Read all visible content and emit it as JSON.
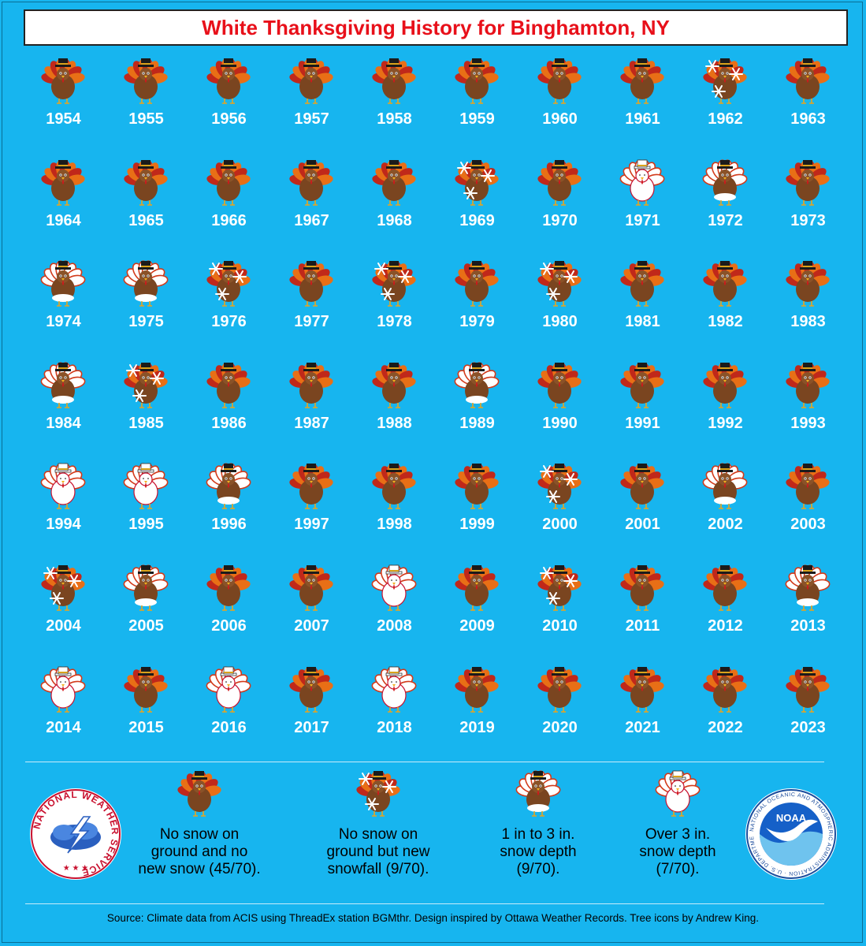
{
  "title": "White Thanksgiving History for Binghamton, NY",
  "colors": {
    "background": "#17b5ef",
    "title_text": "#e8101a",
    "turkey_body": "#7a4520",
    "feather_red": "#c0281a",
    "feather_orange": "#e86f16",
    "snow": "#ffffff"
  },
  "chart_data": {
    "type": "table",
    "categories": {
      "none": "No snow on ground and no new snow (45/70).",
      "new": "No snow on ground but new snowfall (9/70).",
      "light": "1 in to 3 in. snow depth (9/70).",
      "heavy": "Over 3 in. snow depth (7/70)."
    },
    "years": [
      {
        "year": "1954",
        "cat": "none"
      },
      {
        "year": "1955",
        "cat": "none"
      },
      {
        "year": "1956",
        "cat": "none"
      },
      {
        "year": "1957",
        "cat": "none"
      },
      {
        "year": "1958",
        "cat": "none"
      },
      {
        "year": "1959",
        "cat": "none"
      },
      {
        "year": "1960",
        "cat": "none"
      },
      {
        "year": "1961",
        "cat": "none"
      },
      {
        "year": "1962",
        "cat": "new"
      },
      {
        "year": "1963",
        "cat": "none"
      },
      {
        "year": "1964",
        "cat": "none"
      },
      {
        "year": "1965",
        "cat": "none"
      },
      {
        "year": "1966",
        "cat": "none"
      },
      {
        "year": "1967",
        "cat": "none"
      },
      {
        "year": "1968",
        "cat": "none"
      },
      {
        "year": "1969",
        "cat": "new"
      },
      {
        "year": "1970",
        "cat": "none"
      },
      {
        "year": "1971",
        "cat": "heavy"
      },
      {
        "year": "1972",
        "cat": "light"
      },
      {
        "year": "1973",
        "cat": "none"
      },
      {
        "year": "1974",
        "cat": "light"
      },
      {
        "year": "1975",
        "cat": "light"
      },
      {
        "year": "1976",
        "cat": "new"
      },
      {
        "year": "1977",
        "cat": "none"
      },
      {
        "year": "1978",
        "cat": "new"
      },
      {
        "year": "1979",
        "cat": "none"
      },
      {
        "year": "1980",
        "cat": "new"
      },
      {
        "year": "1981",
        "cat": "none"
      },
      {
        "year": "1982",
        "cat": "none"
      },
      {
        "year": "1983",
        "cat": "none"
      },
      {
        "year": "1984",
        "cat": "light"
      },
      {
        "year": "1985",
        "cat": "new"
      },
      {
        "year": "1986",
        "cat": "none"
      },
      {
        "year": "1987",
        "cat": "none"
      },
      {
        "year": "1988",
        "cat": "none"
      },
      {
        "year": "1989",
        "cat": "light"
      },
      {
        "year": "1990",
        "cat": "none"
      },
      {
        "year": "1991",
        "cat": "none"
      },
      {
        "year": "1992",
        "cat": "none"
      },
      {
        "year": "1993",
        "cat": "none"
      },
      {
        "year": "1994",
        "cat": "heavy"
      },
      {
        "year": "1995",
        "cat": "heavy"
      },
      {
        "year": "1996",
        "cat": "light"
      },
      {
        "year": "1997",
        "cat": "none"
      },
      {
        "year": "1998",
        "cat": "none"
      },
      {
        "year": "1999",
        "cat": "none"
      },
      {
        "year": "2000",
        "cat": "new"
      },
      {
        "year": "2001",
        "cat": "none"
      },
      {
        "year": "2002",
        "cat": "light"
      },
      {
        "year": "2003",
        "cat": "none"
      },
      {
        "year": "2004",
        "cat": "new"
      },
      {
        "year": "2005",
        "cat": "light"
      },
      {
        "year": "2006",
        "cat": "none"
      },
      {
        "year": "2007",
        "cat": "none"
      },
      {
        "year": "2008",
        "cat": "heavy"
      },
      {
        "year": "2009",
        "cat": "none"
      },
      {
        "year": "2010",
        "cat": "new"
      },
      {
        "year": "2011",
        "cat": "none"
      },
      {
        "year": "2012",
        "cat": "none"
      },
      {
        "year": "2013",
        "cat": "light"
      },
      {
        "year": "2014",
        "cat": "heavy"
      },
      {
        "year": "2015",
        "cat": "none"
      },
      {
        "year": "2016",
        "cat": "heavy"
      },
      {
        "year": "2017",
        "cat": "none"
      },
      {
        "year": "2018",
        "cat": "heavy"
      },
      {
        "year": "2019",
        "cat": "none"
      },
      {
        "year": "2020",
        "cat": "none"
      },
      {
        "year": "2021",
        "cat": "none"
      },
      {
        "year": "2022",
        "cat": "none"
      },
      {
        "year": "2023",
        "cat": "none"
      }
    ]
  },
  "legend": {
    "none_lines": [
      "No snow on",
      "ground and no",
      "new snow (45/70)."
    ],
    "new_lines": [
      "No snow on",
      "ground but new",
      "snowfall (9/70)."
    ],
    "light_lines": [
      "1 in to 3 in.",
      "snow depth",
      "(9/70)."
    ],
    "heavy_lines": [
      "Over 3 in.",
      "snow depth",
      "(7/70)."
    ]
  },
  "logos": {
    "nws_text": "NATIONAL WEATHER SERVICE",
    "noaa_text": "NOAA",
    "noaa_ring": "NATIONAL OCEANIC AND ATMOSPHERIC ADMINISTRATION · U.S. DEPARTMENT OF COMMERCE"
  },
  "source": "Source: Climate data from ACIS using ThreadEx station BGMthr. Design inspired by Ottawa Weather Records. Tree icons by Andrew King."
}
